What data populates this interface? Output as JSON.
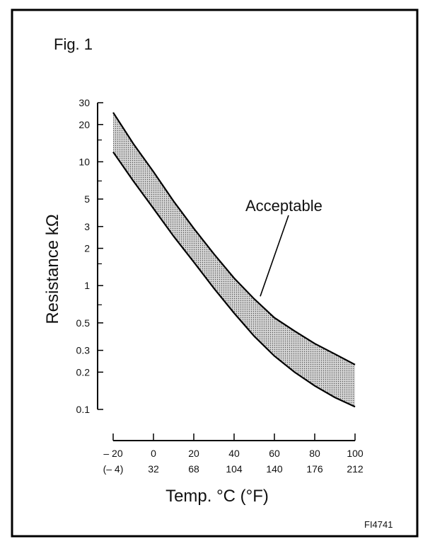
{
  "figure_label": "Fig. 1",
  "figure_code": "FI4741",
  "chart_data": {
    "type": "area",
    "title": "",
    "ylabel": "Resistance kΩ",
    "xlabel": "Temp. °C (°F)",
    "yscale": "log",
    "ylim": [
      0.1,
      30
    ],
    "xlim": [
      -20,
      100
    ],
    "y_ticks": [
      {
        "value": 30,
        "label": "30"
      },
      {
        "value": 20,
        "label": "20"
      },
      {
        "value": 10,
        "label": "10"
      },
      {
        "value": 5,
        "label": "5"
      },
      {
        "value": 3,
        "label": "3"
      },
      {
        "value": 2,
        "label": "2"
      },
      {
        "value": 1,
        "label": "1"
      },
      {
        "value": 0.5,
        "label": "0.5"
      },
      {
        "value": 0.3,
        "label": "0.3"
      },
      {
        "value": 0.2,
        "label": "0.2"
      },
      {
        "value": 0.1,
        "label": "0.1"
      }
    ],
    "y_minor_ticks": [
      0.7,
      1.5,
      7,
      15
    ],
    "x_ticks": [
      {
        "value": -20,
        "label_c": "– 20",
        "label_f": "(– 4)"
      },
      {
        "value": 0,
        "label_c": "0",
        "label_f": "32"
      },
      {
        "value": 20,
        "label_c": "20",
        "label_f": "68"
      },
      {
        "value": 40,
        "label_c": "40",
        "label_f": "104"
      },
      {
        "value": 60,
        "label_c": "60",
        "label_f": "140"
      },
      {
        "value": 80,
        "label_c": "80",
        "label_f": "176"
      },
      {
        "value": 100,
        "label_c": "100",
        "label_f": "212"
      }
    ],
    "series": [
      {
        "x": [
          -20,
          -10,
          0,
          10,
          20,
          30,
          40,
          50,
          60,
          70,
          80,
          90,
          100
        ],
        "values": [
          25,
          14,
          8.3,
          4.8,
          2.9,
          1.8,
          1.15,
          0.78,
          0.55,
          0.43,
          0.34,
          0.28,
          0.23
        ]
      },
      {
        "x": [
          -20,
          -10,
          0,
          10,
          20,
          30,
          40,
          50,
          60,
          70,
          80,
          90,
          100
        ],
        "values": [
          12,
          7,
          4.2,
          2.5,
          1.55,
          0.95,
          0.6,
          0.39,
          0.27,
          0.2,
          0.155,
          0.125,
          0.105
        ]
      }
    ],
    "band_fill": "#b9b9b9",
    "annotation": {
      "text": "Acceptable",
      "x": 53,
      "y": 0.82
    }
  }
}
